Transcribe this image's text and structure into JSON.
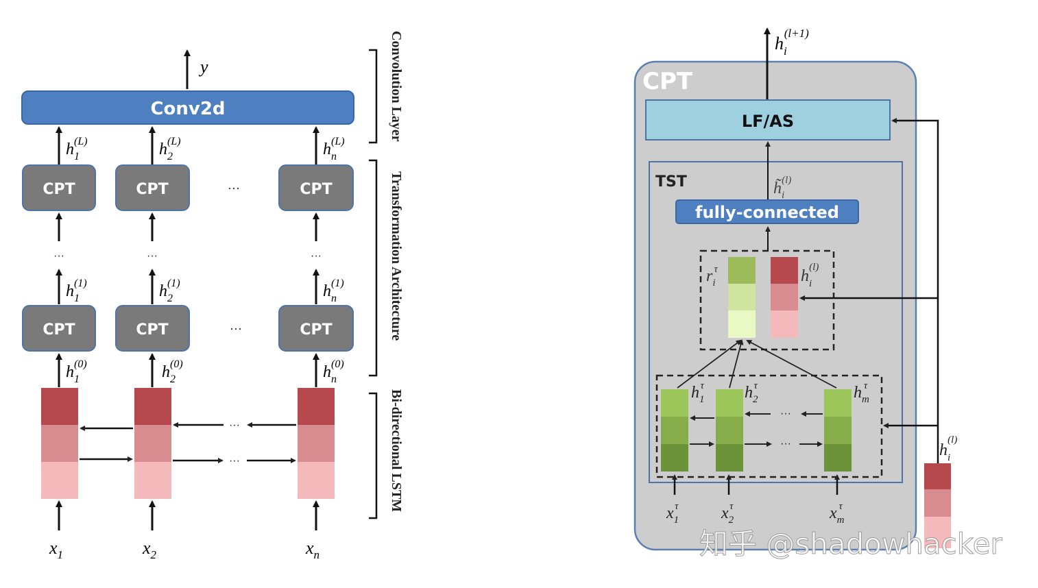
{
  "left": {
    "output": "y",
    "conv": "Conv2d",
    "cpt": "CPT",
    "dots": "···",
    "vdots": "···",
    "hidden": {
      "L": [
        "h",
        "1",
        "(L)",
        "h",
        "2",
        "(L)",
        "h",
        "n",
        "(L)"
      ],
      "one": [
        "h",
        "1",
        "(1)",
        "h",
        "2",
        "(1)",
        "h",
        "n",
        "(1)"
      ],
      "zero": [
        "h",
        "1",
        "(0)",
        "h",
        "2",
        "(0)",
        "h",
        "n",
        "(0)"
      ]
    },
    "inputs": [
      {
        "base": "x",
        "sub": "1"
      },
      {
        "base": "x",
        "sub": "2"
      },
      {
        "base": "x",
        "sub": "n"
      }
    ],
    "brackets": {
      "conv": "Convolution Layer",
      "trans": "Transformation Architecture",
      "lstm": "Bi-directional LSTM"
    }
  },
  "right": {
    "title": "CPT",
    "lfas": "LF/AS",
    "tst": "TST",
    "fc": "fully-connected",
    "top_out": {
      "base": "h",
      "sub": "i",
      "sup": "(l+1)"
    },
    "tilde": {
      "base": "h̃",
      "sub": "i",
      "sup": "(l)"
    },
    "r": {
      "base": "r",
      "sub": "i",
      "sup": "τ"
    },
    "hil": {
      "base": "h",
      "sub": "i",
      "sup": "(l)"
    },
    "ctx": [
      {
        "base": "h",
        "sub": "1",
        "sup": "τ"
      },
      {
        "base": "h",
        "sub": "2",
        "sup": "τ"
      },
      {
        "base": "h",
        "sub": "m",
        "sup": "τ"
      }
    ],
    "xin": [
      {
        "base": "x",
        "sub": "1",
        "sup": "τ"
      },
      {
        "base": "x",
        "sub": "2",
        "sup": "τ"
      },
      {
        "base": "x",
        "sub": "m",
        "sup": "τ"
      }
    ],
    "dots": "···",
    "outside": {
      "base": "h",
      "sub": "i",
      "sup": "(l)"
    }
  },
  "watermark": "知乎 @shadowhacker"
}
